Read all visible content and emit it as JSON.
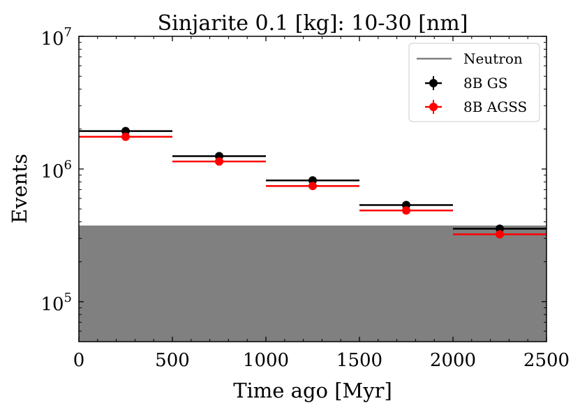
{
  "chart_data": {
    "type": "scatter",
    "title": "Sinjarite 0.1 [kg]: 10-30 [nm]",
    "xlabel": "Time ago [Myr]",
    "ylabel": "Events",
    "xlim": [
      0,
      2500
    ],
    "ylim": [
      50000,
      10000000
    ],
    "yscale": "log",
    "x_ticks": [
      0,
      500,
      1000,
      1500,
      2000,
      2500
    ],
    "x_tick_labels": [
      "0",
      "500",
      "1000",
      "1500",
      "2000",
      "2500"
    ],
    "y_ticks": [
      100000,
      1000000,
      10000000
    ],
    "y_tick_labels": [
      {
        "base": "10",
        "exp": "5"
      },
      {
        "base": "10",
        "exp": "6"
      },
      {
        "base": "10",
        "exp": "7"
      }
    ],
    "legend_position": "top-right",
    "neutron": {
      "name": "Neutron",
      "value": 375000,
      "color": "#808080"
    },
    "series": [
      {
        "name": "8B GS",
        "color": "#000000",
        "x": [
          250,
          750,
          1250,
          1750,
          2250
        ],
        "xerr": [
          250,
          250,
          250,
          250,
          250
        ],
        "values": [
          1930000,
          1250000,
          820000,
          535000,
          355000
        ]
      },
      {
        "name": "8B AGSS",
        "color": "#ff0000",
        "x": [
          250,
          750,
          1250,
          1750,
          2250
        ],
        "xerr": [
          250,
          250,
          250,
          250,
          250
        ],
        "values": [
          1750000,
          1140000,
          745000,
          487000,
          322000
        ]
      }
    ]
  }
}
